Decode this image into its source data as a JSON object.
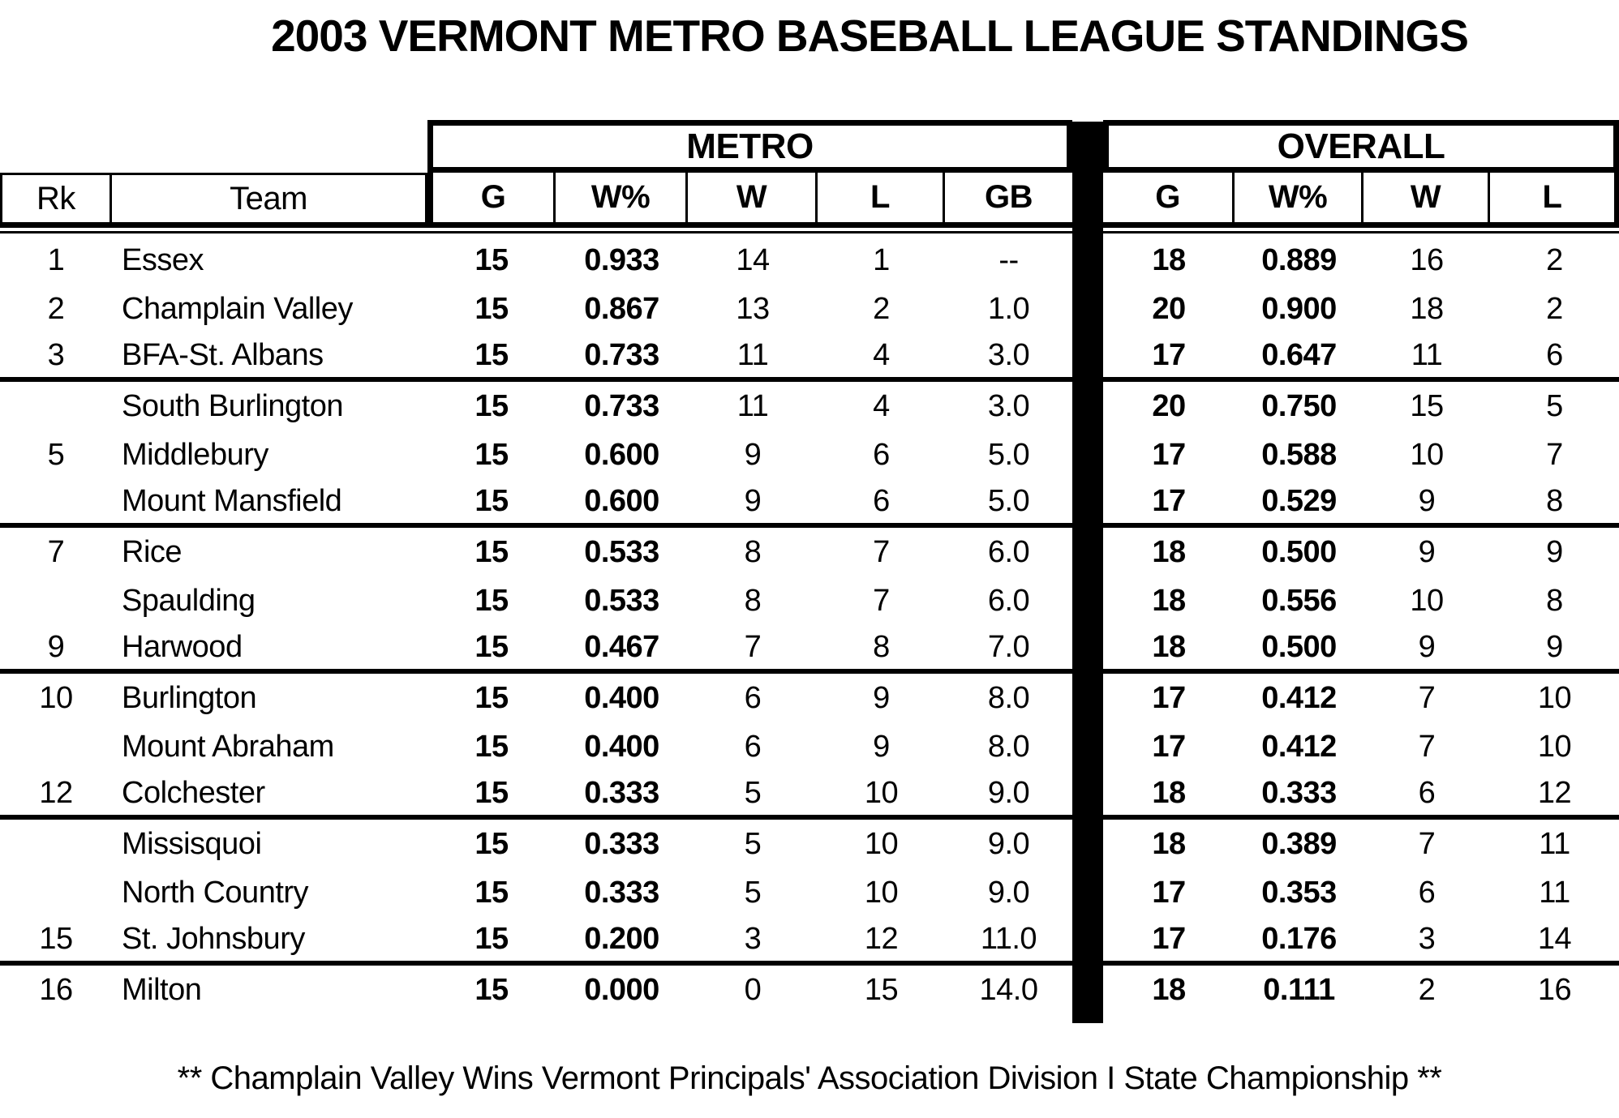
{
  "title": "2003 VERMONT METRO BASEBALL LEAGUE STANDINGS",
  "footer": "** Champlain Valley Wins Vermont Principals' Association Division I State Championship **",
  "colors": {
    "ink": "#000000",
    "paper": "#ffffff"
  },
  "table": {
    "group_headers": [
      {
        "label": "METRO"
      },
      {
        "label": "OVERALL"
      }
    ],
    "columns": [
      "Rk",
      "Team",
      "G",
      "W%",
      "W",
      "L",
      "GB",
      "G",
      "W%",
      "W",
      "L"
    ],
    "rows": [
      {
        "rank": "1",
        "team": "Essex",
        "metro": {
          "g": "15",
          "wpct": "0.933",
          "w": "14",
          "l": "1",
          "gb": "--"
        },
        "overall": {
          "g": "18",
          "wpct": "0.889",
          "w": "16",
          "l": "2"
        },
        "separator_after": false
      },
      {
        "rank": "2",
        "team": "Champlain Valley",
        "metro": {
          "g": "15",
          "wpct": "0.867",
          "w": "13",
          "l": "2",
          "gb": "1.0"
        },
        "overall": {
          "g": "20",
          "wpct": "0.900",
          "w": "18",
          "l": "2"
        },
        "separator_after": false
      },
      {
        "rank": "3",
        "team": "BFA-St. Albans",
        "metro": {
          "g": "15",
          "wpct": "0.733",
          "w": "11",
          "l": "4",
          "gb": "3.0"
        },
        "overall": {
          "g": "17",
          "wpct": "0.647",
          "w": "11",
          "l": "6"
        },
        "separator_after": true
      },
      {
        "rank": "",
        "team": "South Burlington",
        "metro": {
          "g": "15",
          "wpct": "0.733",
          "w": "11",
          "l": "4",
          "gb": "3.0"
        },
        "overall": {
          "g": "20",
          "wpct": "0.750",
          "w": "15",
          "l": "5"
        },
        "separator_after": false
      },
      {
        "rank": "5",
        "team": "Middlebury",
        "metro": {
          "g": "15",
          "wpct": "0.600",
          "w": "9",
          "l": "6",
          "gb": "5.0"
        },
        "overall": {
          "g": "17",
          "wpct": "0.588",
          "w": "10",
          "l": "7"
        },
        "separator_after": false
      },
      {
        "rank": "",
        "team": "Mount Mansfield",
        "metro": {
          "g": "15",
          "wpct": "0.600",
          "w": "9",
          "l": "6",
          "gb": "5.0"
        },
        "overall": {
          "g": "17",
          "wpct": "0.529",
          "w": "9",
          "l": "8"
        },
        "separator_after": true
      },
      {
        "rank": "7",
        "team": "Rice",
        "metro": {
          "g": "15",
          "wpct": "0.533",
          "w": "8",
          "l": "7",
          "gb": "6.0"
        },
        "overall": {
          "g": "18",
          "wpct": "0.500",
          "w": "9",
          "l": "9"
        },
        "separator_after": false
      },
      {
        "rank": "",
        "team": "Spaulding",
        "metro": {
          "g": "15",
          "wpct": "0.533",
          "w": "8",
          "l": "7",
          "gb": "6.0"
        },
        "overall": {
          "g": "18",
          "wpct": "0.556",
          "w": "10",
          "l": "8"
        },
        "separator_after": false
      },
      {
        "rank": "9",
        "team": "Harwood",
        "metro": {
          "g": "15",
          "wpct": "0.467",
          "w": "7",
          "l": "8",
          "gb": "7.0"
        },
        "overall": {
          "g": "18",
          "wpct": "0.500",
          "w": "9",
          "l": "9"
        },
        "separator_after": true
      },
      {
        "rank": "10",
        "team": "Burlington",
        "metro": {
          "g": "15",
          "wpct": "0.400",
          "w": "6",
          "l": "9",
          "gb": "8.0"
        },
        "overall": {
          "g": "17",
          "wpct": "0.412",
          "w": "7",
          "l": "10"
        },
        "separator_after": false
      },
      {
        "rank": "",
        "team": "Mount Abraham",
        "metro": {
          "g": "15",
          "wpct": "0.400",
          "w": "6",
          "l": "9",
          "gb": "8.0"
        },
        "overall": {
          "g": "17",
          "wpct": "0.412",
          "w": "7",
          "l": "10"
        },
        "separator_after": false
      },
      {
        "rank": "12",
        "team": "Colchester",
        "metro": {
          "g": "15",
          "wpct": "0.333",
          "w": "5",
          "l": "10",
          "gb": "9.0"
        },
        "overall": {
          "g": "18",
          "wpct": "0.333",
          "w": "6",
          "l": "12"
        },
        "separator_after": true
      },
      {
        "rank": "",
        "team": "Missisquoi",
        "metro": {
          "g": "15",
          "wpct": "0.333",
          "w": "5",
          "l": "10",
          "gb": "9.0"
        },
        "overall": {
          "g": "18",
          "wpct": "0.389",
          "w": "7",
          "l": "11"
        },
        "separator_after": false
      },
      {
        "rank": "",
        "team": "North Country",
        "metro": {
          "g": "15",
          "wpct": "0.333",
          "w": "5",
          "l": "10",
          "gb": "9.0"
        },
        "overall": {
          "g": "17",
          "wpct": "0.353",
          "w": "6",
          "l": "11"
        },
        "separator_after": false
      },
      {
        "rank": "15",
        "team": "St. Johnsbury",
        "metro": {
          "g": "15",
          "wpct": "0.200",
          "w": "3",
          "l": "12",
          "gb": "11.0"
        },
        "overall": {
          "g": "17",
          "wpct": "0.176",
          "w": "3",
          "l": "14"
        },
        "separator_after": true
      },
      {
        "rank": "16",
        "team": "Milton",
        "metro": {
          "g": "15",
          "wpct": "0.000",
          "w": "0",
          "l": "15",
          "gb": "14.0"
        },
        "overall": {
          "g": "18",
          "wpct": "0.111",
          "w": "2",
          "l": "16"
        },
        "separator_after": false
      }
    ]
  }
}
